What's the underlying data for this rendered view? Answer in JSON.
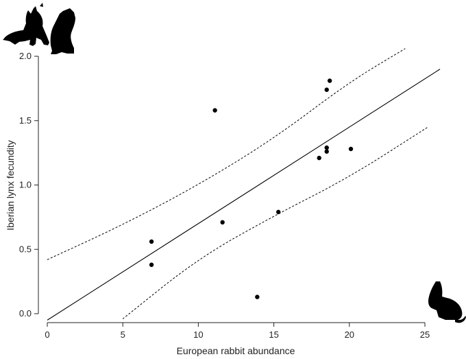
{
  "chart_data": {
    "type": "scatter",
    "xlabel": "European rabbit abundance",
    "ylabel": "Iberian lynx fecundity",
    "xlim": [
      0,
      25
    ],
    "ylim": [
      0,
      2.0
    ],
    "x_ticks": [
      0,
      5,
      10,
      15,
      20,
      25
    ],
    "y_ticks": [
      0.0,
      0.5,
      1.0,
      1.5,
      2.0
    ],
    "x_tick_labels": [
      "0",
      "5",
      "10",
      "15",
      "20",
      "25"
    ],
    "y_tick_labels": [
      "0.0",
      "0.5",
      "1.0",
      "1.5",
      "2.0"
    ],
    "grid": false,
    "points": [
      {
        "x": 6.9,
        "y": 0.56
      },
      {
        "x": 6.9,
        "y": 0.38
      },
      {
        "x": 11.1,
        "y": 1.58
      },
      {
        "x": 11.6,
        "y": 0.71
      },
      {
        "x": 13.9,
        "y": 0.13
      },
      {
        "x": 15.3,
        "y": 0.79
      },
      {
        "x": 18.0,
        "y": 1.21
      },
      {
        "x": 18.5,
        "y": 1.29
      },
      {
        "x": 18.5,
        "y": 1.26
      },
      {
        "x": 18.5,
        "y": 1.74
      },
      {
        "x": 18.7,
        "y": 1.81
      },
      {
        "x": 20.1,
        "y": 1.28
      }
    ],
    "regression_line": {
      "x_start": 0,
      "y_start": -0.05,
      "x_end": 26,
      "y_end": 1.9
    },
    "confidence_band_upper": {
      "x": [
        0,
        5,
        10,
        15,
        20,
        23.7
      ],
      "y": [
        0.42,
        0.69,
        1.0,
        1.36,
        1.8,
        2.06
      ]
    },
    "confidence_band_lower": {
      "x": [
        5,
        10,
        15,
        20,
        25.2
      ],
      "y": [
        -0.04,
        0.43,
        0.76,
        1.06,
        1.45
      ]
    },
    "icons": [
      "lynx-silhouette-icon",
      "rabbit-silhouette-icon"
    ],
    "colors": {
      "points": "#000000",
      "line": "#000000",
      "axis": "#222222"
    }
  }
}
